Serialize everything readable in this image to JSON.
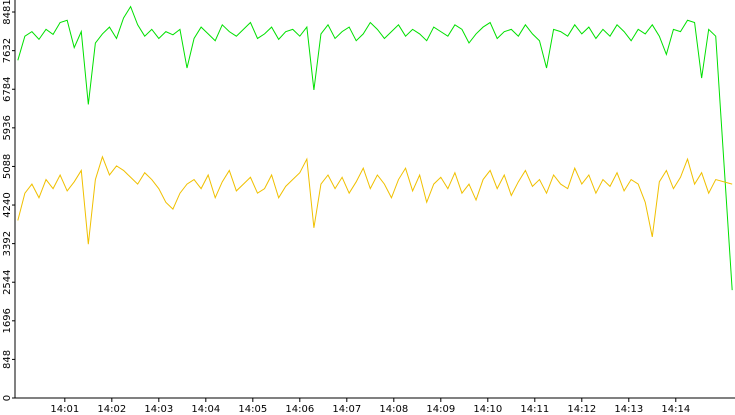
{
  "chart_data": {
    "type": "line",
    "x": [
      840.0,
      840.15,
      840.3,
      840.45,
      840.6,
      840.75,
      840.9,
      841.05,
      841.2,
      841.35,
      841.5,
      841.65,
      841.8,
      841.95,
      842.1,
      842.25,
      842.4,
      842.55,
      842.7,
      842.85,
      843.0,
      843.15,
      843.3,
      843.45,
      843.6,
      843.75,
      843.9,
      844.05,
      844.2,
      844.35,
      844.5,
      844.65,
      844.8,
      844.95,
      845.1,
      845.25,
      845.4,
      845.55,
      845.7,
      845.85,
      846.0,
      846.15,
      846.3,
      846.45,
      846.6,
      846.75,
      846.9,
      847.05,
      847.2,
      847.35,
      847.5,
      847.65,
      847.8,
      847.95,
      848.1,
      848.25,
      848.4,
      848.55,
      848.7,
      848.85,
      849.0,
      849.15,
      849.3,
      849.45,
      849.6,
      849.75,
      849.9,
      850.05,
      850.2,
      850.35,
      850.5,
      850.65,
      850.8,
      850.95,
      851.1,
      851.25,
      851.4,
      851.55,
      851.7,
      851.85,
      852.0,
      852.15,
      852.3,
      852.45,
      852.6,
      852.75,
      852.9,
      853.05,
      853.2,
      853.35,
      853.5,
      853.65,
      853.8,
      853.95,
      854.1,
      854.25,
      854.4,
      854.55,
      854.7,
      854.85,
      855.2
    ],
    "series": [
      {
        "color": "#00e000",
        "values": [
          7420,
          7950,
          8050,
          7880,
          8100,
          7990,
          8250,
          8300,
          7700,
          8050,
          6450,
          7800,
          8000,
          8150,
          7900,
          8350,
          8600,
          8200,
          7950,
          8100,
          7900,
          8050,
          7980,
          8100,
          7250,
          7900,
          8150,
          8000,
          7850,
          8200,
          8050,
          7950,
          8100,
          8250,
          7900,
          8000,
          8150,
          7880,
          8050,
          8100,
          7950,
          8150,
          6770,
          8000,
          8200,
          7900,
          8050,
          8150,
          7850,
          8000,
          8250,
          8100,
          7900,
          8050,
          8200,
          7950,
          8100,
          8000,
          7850,
          8150,
          8050,
          7950,
          8200,
          8100,
          7800,
          8000,
          8150,
          8250,
          7900,
          8050,
          8100,
          7950,
          8200,
          8000,
          7850,
          7250,
          8100,
          8050,
          7950,
          8200,
          8000,
          8150,
          7900,
          8100,
          7950,
          8200,
          8050,
          7850,
          8100,
          8000,
          8200,
          7950,
          7550,
          8100,
          8050,
          8300,
          8250,
          7030,
          8100,
          7950,
          2370
        ]
      },
      {
        "color": "#f0c000",
        "values": [
          3900,
          4500,
          4700,
          4400,
          4800,
          4600,
          4900,
          4550,
          4750,
          5000,
          3380,
          4800,
          5300,
          4900,
          5100,
          5000,
          4850,
          4700,
          4950,
          4800,
          4600,
          4300,
          4150,
          4500,
          4700,
          4800,
          4600,
          4900,
          4400,
          4750,
          5000,
          4550,
          4700,
          4850,
          4500,
          4600,
          4900,
          4400,
          4650,
          4800,
          4950,
          5250,
          3740,
          4700,
          4900,
          4600,
          4850,
          4500,
          4750,
          5050,
          4600,
          4900,
          4700,
          4400,
          4800,
          5050,
          4550,
          4900,
          4300,
          4700,
          4850,
          4600,
          4950,
          4500,
          4700,
          4350,
          4800,
          5000,
          4600,
          4900,
          4450,
          4750,
          5000,
          4650,
          4800,
          4500,
          4900,
          4700,
          4600,
          5050,
          4700,
          4900,
          4500,
          4800,
          4650,
          4950,
          4550,
          4800,
          4700,
          4300,
          3540,
          4750,
          5000,
          4600,
          4850,
          5250,
          4700,
          4950,
          4500,
          4800,
          4700
        ]
      }
    ],
    "xlim": [
      839.94,
      855.26
    ],
    "xticks": [
      {
        "value": 841,
        "label": "14:01"
      },
      {
        "value": 842,
        "label": "14:02"
      },
      {
        "value": 843,
        "label": "14:03"
      },
      {
        "value": 844,
        "label": "14:04"
      },
      {
        "value": 845,
        "label": "14:05"
      },
      {
        "value": 846,
        "label": "14:06"
      },
      {
        "value": 847,
        "label": "14:07"
      },
      {
        "value": 848,
        "label": "14:08"
      },
      {
        "value": 849,
        "label": "14:09"
      },
      {
        "value": 850,
        "label": "14:10"
      },
      {
        "value": 851,
        "label": "14:11"
      },
      {
        "value": 852,
        "label": "14:12"
      },
      {
        "value": 853,
        "label": "14:13"
      },
      {
        "value": 854,
        "label": "14:14"
      }
    ],
    "ylim": [
      0,
      8745
    ],
    "yticks": [
      0,
      848,
      1696,
      2544,
      3392,
      4240,
      5088,
      5936,
      6784,
      7632,
      8481
    ]
  }
}
